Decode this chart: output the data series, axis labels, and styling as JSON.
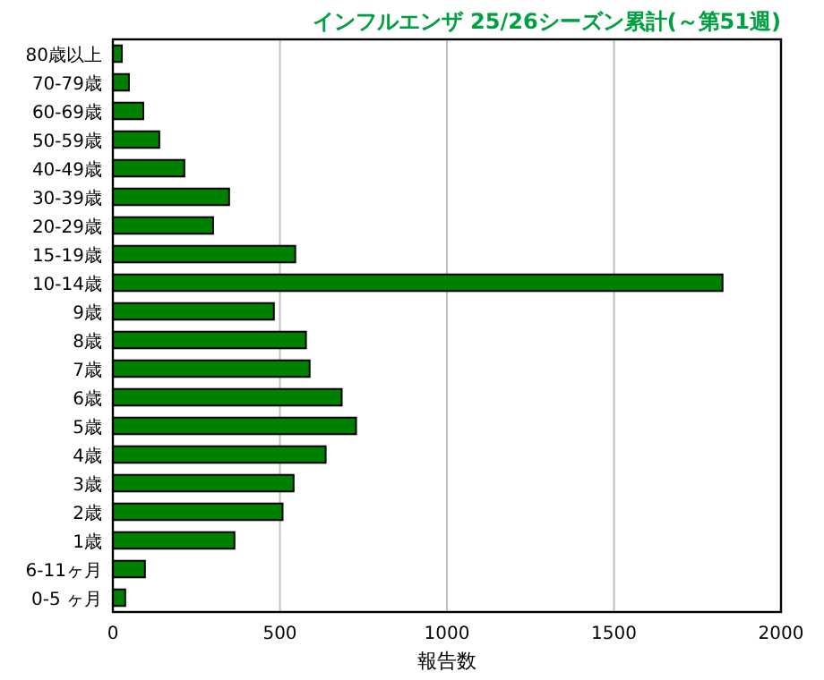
{
  "chart_data": {
    "type": "bar",
    "orientation": "horizontal",
    "title": "インフルエンザ 25/26シーズン累計(～第51週)",
    "xlabel": "報告数",
    "categories": [
      "80歳以上",
      "70-79歳",
      "60-69歳",
      "50-59歳",
      "40-49歳",
      "30-39歳",
      "20-29歳",
      "15-19歳",
      "10-14歳",
      "9歳",
      "8歳",
      "7歳",
      "6歳",
      "5歳",
      "4歳",
      "3歳",
      "2歳",
      "1歳",
      "6-11ヶ月",
      "0-5 ヶ月"
    ],
    "values": [
      27,
      48,
      91,
      139,
      214,
      348,
      300,
      546,
      1825,
      482,
      578,
      589,
      685,
      728,
      637,
      541,
      508,
      364,
      96,
      37
    ],
    "color": "#008000",
    "xlim": [
      0,
      2000
    ],
    "xticks": [
      0,
      500,
      1000,
      1500,
      2000
    ],
    "grid": "x"
  }
}
